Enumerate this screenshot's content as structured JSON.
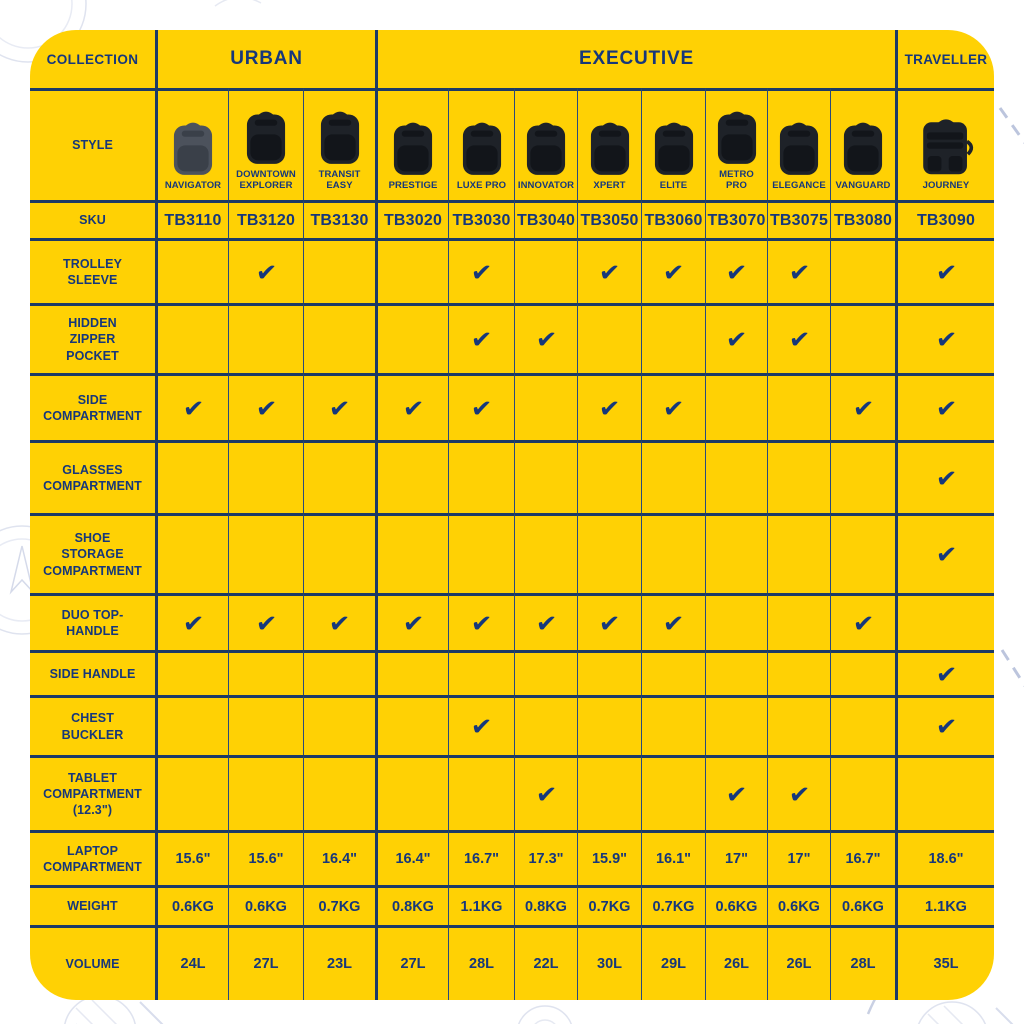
{
  "table": {
    "corner_label": "COLLECTION",
    "style_label": "STYLE",
    "sku_label": "SKU",
    "collections": [
      {
        "label": "URBAN",
        "span": 3
      },
      {
        "label": "EXECUTIVE",
        "span": 8
      },
      {
        "label": "TRAVELLER",
        "span": 1
      }
    ],
    "products": [
      {
        "name": "NAVIGATOR",
        "sku": "TB3110",
        "collection": "URBAN",
        "bag_color": "#4C525C",
        "bag_shade": "#3A4049",
        "variant": "backpack"
      },
      {
        "name": "DOWNTOWN EXPLORER",
        "sku": "TB3120",
        "collection": "URBAN",
        "bag_color": "#1E2228",
        "bag_shade": "#12151A",
        "variant": "backpack"
      },
      {
        "name": "TRANSIT EASY",
        "sku": "TB3130",
        "collection": "URBAN",
        "bag_color": "#1E2228",
        "bag_shade": "#12151A",
        "variant": "backpack"
      },
      {
        "name": "PRESTIGE",
        "sku": "TB3020",
        "collection": "EXECUTIVE",
        "bag_color": "#1E2228",
        "bag_shade": "#12151A",
        "variant": "backpack"
      },
      {
        "name": "LUXE PRO",
        "sku": "TB3030",
        "collection": "EXECUTIVE",
        "bag_color": "#1E2228",
        "bag_shade": "#12151A",
        "variant": "backpack"
      },
      {
        "name": "INNOVATOR",
        "sku": "TB3040",
        "collection": "EXECUTIVE",
        "bag_color": "#1E2228",
        "bag_shade": "#12151A",
        "variant": "backpack"
      },
      {
        "name": "XPERT",
        "sku": "TB3050",
        "collection": "EXECUTIVE",
        "bag_color": "#1E2228",
        "bag_shade": "#12151A",
        "variant": "backpack"
      },
      {
        "name": "ELITE",
        "sku": "TB3060",
        "collection": "EXECUTIVE",
        "bag_color": "#1E2228",
        "bag_shade": "#12151A",
        "variant": "backpack"
      },
      {
        "name": "METRO PRO",
        "sku": "TB3070",
        "collection": "EXECUTIVE",
        "bag_color": "#1E2228",
        "bag_shade": "#12151A",
        "variant": "backpack"
      },
      {
        "name": "ELEGANCE",
        "sku": "TB3075",
        "collection": "EXECUTIVE",
        "bag_color": "#1E2228",
        "bag_shade": "#12151A",
        "variant": "backpack"
      },
      {
        "name": "VANGUARD",
        "sku": "TB3080",
        "collection": "EXECUTIVE",
        "bag_color": "#1E2228",
        "bag_shade": "#12151A",
        "variant": "backpack"
      },
      {
        "name": "JOURNEY",
        "sku": "TB3090",
        "collection": "TRAVELLER",
        "bag_color": "#1E2228",
        "bag_shade": "#12151A",
        "variant": "travel"
      }
    ],
    "feature_rows": [
      {
        "label": "TROLLEY SLEEVE",
        "checks": [
          0,
          1,
          0,
          0,
          1,
          0,
          1,
          1,
          1,
          1,
          0,
          1
        ]
      },
      {
        "label": "HIDDEN ZIPPER POCKET",
        "checks": [
          0,
          0,
          0,
          0,
          1,
          1,
          0,
          0,
          1,
          1,
          0,
          1
        ]
      },
      {
        "label": "SIDE COMPARTMENT",
        "checks": [
          1,
          1,
          1,
          1,
          1,
          0,
          1,
          1,
          0,
          0,
          1,
          1
        ]
      },
      {
        "label": "GLASSES COMPARTMENT",
        "checks": [
          0,
          0,
          0,
          0,
          0,
          0,
          0,
          0,
          0,
          0,
          0,
          1
        ]
      },
      {
        "label": "SHOE STORAGE COMPARTMENT",
        "checks": [
          0,
          0,
          0,
          0,
          0,
          0,
          0,
          0,
          0,
          0,
          0,
          1
        ]
      },
      {
        "label": "DUO TOP-HANDLE",
        "checks": [
          1,
          1,
          1,
          1,
          1,
          1,
          1,
          1,
          0,
          0,
          1,
          0
        ]
      },
      {
        "label": "SIDE HANDLE",
        "checks": [
          0,
          0,
          0,
          0,
          0,
          0,
          0,
          0,
          0,
          0,
          0,
          1
        ]
      },
      {
        "label": "CHEST BUCKLER",
        "checks": [
          0,
          0,
          0,
          0,
          1,
          0,
          0,
          0,
          0,
          0,
          0,
          1
        ]
      },
      {
        "label": "TABLET COMPARTMENT (12.3\")",
        "checks": [
          0,
          0,
          0,
          0,
          0,
          1,
          0,
          0,
          1,
          1,
          0,
          0
        ]
      }
    ],
    "spec_rows": [
      {
        "label": "LAPTOP COMPARTMENT",
        "values": [
          "15.6\"",
          "15.6\"",
          "16.4\"",
          "16.4\"",
          "16.7\"",
          "17.3\"",
          "15.9\"",
          "16.1\"",
          "17\"",
          "17\"",
          "16.7\"",
          "18.6\""
        ]
      },
      {
        "label": "WEIGHT",
        "values": [
          "0.6KG",
          "0.6KG",
          "0.7KG",
          "0.8KG",
          "1.1KG",
          "0.8KG",
          "0.7KG",
          "0.7KG",
          "0.6KG",
          "0.6KG",
          "0.6KG",
          "1.1KG"
        ]
      },
      {
        "label": "VOLUME",
        "values": [
          "24L",
          "27L",
          "23L",
          "27L",
          "28L",
          "22L",
          "30L",
          "29L",
          "26L",
          "26L",
          "28L",
          "35L"
        ]
      }
    ],
    "check_icon": "✔",
    "colors": {
      "background": "#FFD104",
      "text_navy": "#16377B",
      "grid_navy": "#1D3A66",
      "page_background": "#FFFFFF",
      "doodle": "#DFE3EF"
    }
  },
  "chart_data": {
    "type": "table",
    "column_groups": [
      {
        "label": "URBAN",
        "columns": [
          "NAVIGATOR",
          "DOWNTOWN EXPLORER",
          "TRANSIT EASY"
        ]
      },
      {
        "label": "EXECUTIVE",
        "columns": [
          "PRESTIGE",
          "LUXE PRO",
          "INNOVATOR",
          "XPERT",
          "ELITE",
          "METRO PRO",
          "ELEGANCE",
          "VANGUARD"
        ]
      },
      {
        "label": "TRAVELLER",
        "columns": [
          "JOURNEY"
        ]
      }
    ],
    "rows": [
      {
        "label": "SKU",
        "values": [
          "TB3110",
          "TB3120",
          "TB3130",
          "TB3020",
          "TB3030",
          "TB3040",
          "TB3050",
          "TB3060",
          "TB3070",
          "TB3075",
          "TB3080",
          "TB3090"
        ]
      },
      {
        "label": "TROLLEY SLEEVE",
        "values": [
          false,
          true,
          false,
          false,
          true,
          false,
          true,
          true,
          true,
          true,
          false,
          true
        ]
      },
      {
        "label": "HIDDEN ZIPPER POCKET",
        "values": [
          false,
          false,
          false,
          false,
          true,
          true,
          false,
          false,
          true,
          true,
          false,
          true
        ]
      },
      {
        "label": "SIDE COMPARTMENT",
        "values": [
          true,
          true,
          true,
          true,
          true,
          false,
          true,
          true,
          false,
          false,
          true,
          true
        ]
      },
      {
        "label": "GLASSES COMPARTMENT",
        "values": [
          false,
          false,
          false,
          false,
          false,
          false,
          false,
          false,
          false,
          false,
          false,
          true
        ]
      },
      {
        "label": "SHOE STORAGE COMPARTMENT",
        "values": [
          false,
          false,
          false,
          false,
          false,
          false,
          false,
          false,
          false,
          false,
          false,
          true
        ]
      },
      {
        "label": "DUO TOP-HANDLE",
        "values": [
          true,
          true,
          true,
          true,
          true,
          true,
          true,
          true,
          false,
          false,
          true,
          false
        ]
      },
      {
        "label": "SIDE HANDLE",
        "values": [
          false,
          false,
          false,
          false,
          false,
          false,
          false,
          false,
          false,
          false,
          false,
          true
        ]
      },
      {
        "label": "CHEST BUCKLER",
        "values": [
          false,
          false,
          false,
          false,
          true,
          false,
          false,
          false,
          false,
          false,
          false,
          true
        ]
      },
      {
        "label": "TABLET COMPARTMENT (12.3\")",
        "values": [
          false,
          false,
          false,
          false,
          false,
          true,
          false,
          false,
          true,
          true,
          false,
          false
        ]
      },
      {
        "label": "LAPTOP COMPARTMENT",
        "values": [
          "15.6\"",
          "15.6\"",
          "16.4\"",
          "16.4\"",
          "16.7\"",
          "17.3\"",
          "15.9\"",
          "16.1\"",
          "17\"",
          "17\"",
          "16.7\"",
          "18.6\""
        ]
      },
      {
        "label": "WEIGHT",
        "values": [
          "0.6KG",
          "0.6KG",
          "0.7KG",
          "0.8KG",
          "1.1KG",
          "0.8KG",
          "0.7KG",
          "0.7KG",
          "0.6KG",
          "0.6KG",
          "0.6KG",
          "1.1KG"
        ]
      },
      {
        "label": "VOLUME",
        "values": [
          "24L",
          "27L",
          "23L",
          "27L",
          "28L",
          "22L",
          "30L",
          "29L",
          "26L",
          "26L",
          "28L",
          "35L"
        ]
      }
    ]
  }
}
